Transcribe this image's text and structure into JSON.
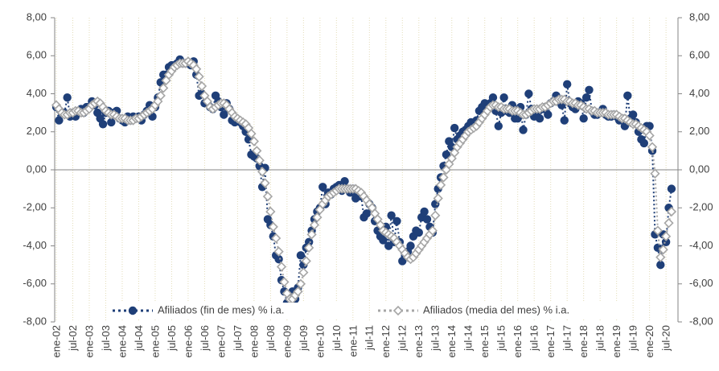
{
  "chart_data": {
    "type": "line",
    "categories": [
      "ene-02",
      null,
      null,
      null,
      null,
      null,
      "jul-02",
      null,
      null,
      null,
      null,
      null,
      "ene-03",
      null,
      null,
      null,
      null,
      null,
      "jul-03",
      null,
      null,
      null,
      null,
      null,
      "ene-04",
      null,
      null,
      null,
      null,
      null,
      "jul-04",
      null,
      null,
      null,
      null,
      null,
      "ene-05",
      null,
      null,
      null,
      null,
      null,
      "jul-05",
      null,
      null,
      null,
      null,
      null,
      "ene-06",
      null,
      null,
      null,
      null,
      null,
      "jul-06",
      null,
      null,
      null,
      null,
      null,
      "ene-07",
      null,
      null,
      null,
      null,
      null,
      "jul-07",
      null,
      null,
      null,
      null,
      null,
      "ene-08",
      null,
      null,
      null,
      null,
      null,
      "jul-08",
      null,
      null,
      null,
      null,
      null,
      "ene-09",
      null,
      null,
      null,
      null,
      null,
      "jul-09",
      null,
      null,
      null,
      null,
      null,
      "ene-10",
      null,
      null,
      null,
      null,
      null,
      "jul-10",
      null,
      null,
      null,
      null,
      null,
      "ene-11",
      null,
      null,
      null,
      null,
      null,
      "jul-11",
      null,
      null,
      null,
      null,
      null,
      "ene-12",
      null,
      null,
      null,
      null,
      null,
      "jul-12",
      null,
      null,
      null,
      null,
      null,
      "ene-13",
      null,
      null,
      null,
      null,
      null,
      "jul-13",
      null,
      null,
      null,
      null,
      null,
      "ene-14",
      null,
      null,
      null,
      null,
      null,
      "jul-14",
      null,
      null,
      null,
      null,
      null,
      "ene-15",
      null,
      null,
      null,
      null,
      null,
      "jul-15",
      null,
      null,
      null,
      null,
      null,
      "ene-16",
      null,
      null,
      null,
      null,
      null,
      "jul-16",
      null,
      null,
      null,
      null,
      null,
      "ene-17",
      null,
      null,
      null,
      null,
      null,
      "jul-17",
      null,
      null,
      null,
      null,
      null,
      "ene-18",
      null,
      null,
      null,
      null,
      null,
      "jul-18",
      null,
      null,
      null,
      null,
      null,
      "ene-19",
      null,
      null,
      null,
      null,
      null,
      "jul-19",
      null,
      null,
      null,
      null,
      null,
      "ene-20",
      null,
      null,
      null,
      null,
      null,
      "jul-20",
      null,
      null
    ],
    "series": [
      {
        "name": "Afiliados (fin de mes) % i.a.",
        "color": "#1f3f78",
        "marker": "circle",
        "values": [
          3.3,
          2.6,
          3.0,
          3.0,
          3.8,
          2.8,
          3.0,
          2.8,
          3.1,
          3.2,
          3.0,
          3.3,
          3.3,
          3.6,
          3.4,
          3.0,
          2.7,
          2.4,
          3.0,
          3.1,
          2.5,
          3.0,
          3.1,
          2.7,
          2.6,
          2.5,
          2.8,
          2.6,
          2.8,
          2.7,
          2.8,
          2.6,
          2.9,
          3.1,
          3.4,
          2.8,
          3.3,
          3.8,
          4.6,
          5.0,
          5.0,
          5.4,
          5.5,
          5.5,
          5.6,
          5.8,
          5.6,
          5.6,
          5.6,
          5.5,
          5.7,
          5.0,
          3.9,
          4.0,
          3.5,
          3.5,
          3.3,
          3.2,
          3.9,
          3.6,
          3.3,
          2.9,
          3.5,
          3.2,
          2.6,
          2.5,
          2.6,
          2.5,
          2.3,
          2.0,
          1.6,
          0.8,
          0.7,
          0.6,
          0.2,
          -0.9,
          0.1,
          -2.6,
          -2.9,
          -3.5,
          -4.5,
          -4.7,
          -5.8,
          -6.4,
          -7.0,
          -6.8,
          -6.4,
          -6.8,
          -6.2,
          -4.5,
          -5.0,
          -4.1,
          -3.8,
          -3.2,
          -2.6,
          -2.2,
          -2.0,
          -0.9,
          -1.8,
          -1.2,
          -1.3,
          -1.0,
          -0.9,
          -0.8,
          -1.1,
          -0.6,
          -1.0,
          -1.2,
          -1.0,
          -1.5,
          -1.2,
          -1.4,
          -2.5,
          -2.3,
          -1.8,
          -2.0,
          -2.7,
          -3.2,
          -3.5,
          -3.7,
          -3.0,
          -4.0,
          -2.4,
          -3.8,
          -2.7,
          -3.8,
          -4.8,
          -4.5,
          -4.3,
          -4.0,
          -3.5,
          -3.2,
          -3.3,
          -2.5,
          -2.2,
          -2.6,
          -3.0,
          -3.3,
          -1.8,
          -1.0,
          -0.4,
          0.2,
          0.8,
          1.5,
          1.2,
          2.2,
          1.6,
          1.8,
          2.0,
          2.1,
          2.3,
          2.5,
          2.3,
          2.6,
          3.1,
          3.3,
          3.5,
          3.3,
          3.5,
          3.8,
          3.1,
          2.3,
          3.0,
          3.8,
          3.1,
          3.0,
          3.4,
          2.7,
          2.7,
          3.3,
          2.1,
          2.9,
          4.0,
          3.2,
          2.8,
          3.0,
          2.7,
          3.2,
          3.3,
          2.9,
          3.5,
          3.6,
          3.9,
          3.6,
          3.4,
          2.6,
          4.5,
          3.5,
          3.3,
          3.2,
          3.6,
          3.5,
          2.7,
          3.8,
          4.2,
          3.1,
          2.9,
          2.9,
          3.0,
          3.2,
          2.9,
          2.8,
          2.8,
          2.9,
          2.8,
          2.6,
          2.7,
          2.3,
          3.9,
          2.7,
          2.9,
          2.5,
          2.0,
          1.6,
          1.4,
          2.3,
          2.3,
          1.0,
          -3.4,
          -4.1,
          -5.0,
          -3.4,
          -3.8,
          -2.0,
          -1.0
        ]
      },
      {
        "name": "Afiliados (media del mes) % i.a.",
        "color": "#a6a6a6",
        "marker": "diamond",
        "values": [
          3.4,
          3.2,
          3.0,
          2.9,
          2.9,
          3.0,
          3.0,
          3.1,
          3.1,
          3.0,
          3.0,
          3.1,
          3.2,
          3.4,
          3.5,
          3.6,
          3.5,
          3.3,
          3.1,
          3.0,
          2.9,
          2.9,
          2.8,
          2.7,
          2.7,
          2.7,
          2.6,
          2.6,
          2.6,
          2.7,
          2.7,
          2.8,
          2.9,
          3.0,
          3.1,
          3.2,
          3.4,
          3.6,
          3.9,
          4.3,
          4.7,
          5.0,
          5.2,
          5.4,
          5.5,
          5.6,
          5.6,
          5.6,
          5.7,
          5.6,
          5.5,
          5.3,
          4.9,
          4.4,
          3.9,
          3.6,
          3.3,
          3.2,
          3.3,
          3.4,
          3.5,
          3.5,
          3.4,
          3.2,
          3.0,
          2.8,
          2.7,
          2.6,
          2.5,
          2.4,
          2.2,
          1.9,
          1.5,
          1.0,
          0.5,
          -0.1,
          -0.7,
          -1.4,
          -2.2,
          -3.0,
          -3.6,
          -4.3,
          -5.1,
          -5.9,
          -6.5,
          -6.8,
          -6.8,
          -6.6,
          -6.4,
          -6.0,
          -5.4,
          -4.8,
          -4.1,
          -3.4,
          -2.9,
          -2.5,
          -2.1,
          -1.8,
          -1.6,
          -1.4,
          -1.3,
          -1.2,
          -1.1,
          -1.0,
          -1.0,
          -1.0,
          -1.0,
          -1.0,
          -1.0,
          -1.0,
          -1.1,
          -1.2,
          -1.4,
          -1.6,
          -1.8,
          -2.0,
          -2.3,
          -2.6,
          -2.9,
          -3.2,
          -3.3,
          -3.4,
          -3.5,
          -3.6,
          -3.8,
          -4.0,
          -4.2,
          -4.4,
          -4.6,
          -4.7,
          -4.6,
          -4.4,
          -4.2,
          -4.0,
          -3.8,
          -3.6,
          -3.4,
          -3.2,
          -2.4,
          -1.5,
          -0.8,
          -0.4,
          0.0,
          0.3,
          0.6,
          0.9,
          1.2,
          1.4,
          1.6,
          1.8,
          2.0,
          2.1,
          2.2,
          2.3,
          2.5,
          2.7,
          2.9,
          3.1,
          3.3,
          3.4,
          3.4,
          3.3,
          3.3,
          3.2,
          3.2,
          3.2,
          3.1,
          3.1,
          3.1,
          3.0,
          2.9,
          2.9,
          3.0,
          3.1,
          3.2,
          3.2,
          3.2,
          3.3,
          3.3,
          3.4,
          3.5,
          3.6,
          3.6,
          3.7,
          3.7,
          3.7,
          3.6,
          3.6,
          3.5,
          3.5,
          3.4,
          3.4,
          3.3,
          3.2,
          3.2,
          3.1,
          3.1,
          3.0,
          3.0,
          3.0,
          3.0,
          2.9,
          2.9,
          2.9,
          2.9,
          2.8,
          2.7,
          2.7,
          2.6,
          2.5,
          2.4,
          2.4,
          2.3,
          2.2,
          2.1,
          2.0,
          1.8,
          1.2,
          -0.2,
          -3.2,
          -4.6,
          -4.2,
          -3.5,
          -2.8,
          -2.2
        ]
      }
    ],
    "ylim": [
      -8,
      8
    ],
    "yticks": [
      {
        "value": -8,
        "label": "-8,00"
      },
      {
        "value": -6,
        "label": "-6,00"
      },
      {
        "value": -4,
        "label": "-4,00"
      },
      {
        "value": -2,
        "label": "-2,00"
      },
      {
        "value": 0,
        "label": "0,00"
      },
      {
        "value": 2,
        "label": "2,00"
      },
      {
        "value": 4,
        "label": "4,00"
      },
      {
        "value": 6,
        "label": "6,00"
      },
      {
        "value": 8,
        "label": "8,00"
      }
    ],
    "y2lim": [
      -8,
      8
    ],
    "y2ticks": [
      {
        "value": -8,
        "label": "-8,00"
      },
      {
        "value": -6,
        "label": "-6,00"
      },
      {
        "value": -4,
        "label": "-4,00"
      },
      {
        "value": -2,
        "label": "-2,00"
      },
      {
        "value": 0,
        "label": "0,00"
      },
      {
        "value": 2,
        "label": "2,00"
      },
      {
        "value": 4,
        "label": "4,00"
      },
      {
        "value": 6,
        "label": "6,00"
      },
      {
        "value": 8,
        "label": "8,00"
      }
    ],
    "grid": true,
    "legend": "bottom"
  }
}
